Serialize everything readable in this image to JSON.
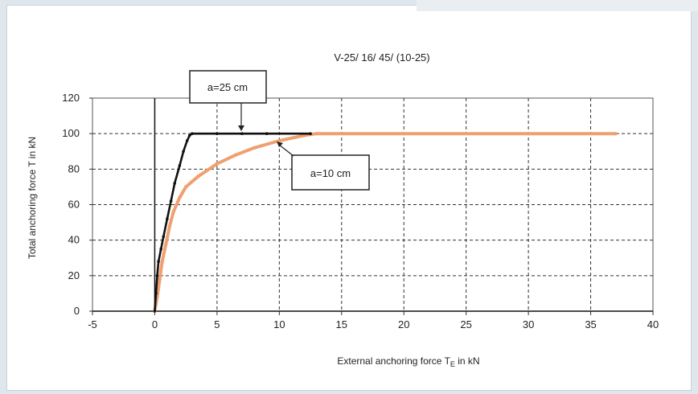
{
  "chart_data": {
    "type": "line",
    "title": "V-25/ 16/ 45/ (10-25)",
    "xlabel": "External anchoring force T",
    "xlabel_sub": "E",
    "xlabel_suffix": " in kN",
    "ylabel": "Total anchoring force T in kN",
    "xlim": [
      -5,
      40
    ],
    "ylim": [
      0,
      120
    ],
    "xticks": [
      -5,
      0,
      5,
      10,
      15,
      20,
      25,
      30,
      35,
      40
    ],
    "yticks": [
      0,
      20,
      40,
      60,
      80,
      100,
      120
    ],
    "grid": true,
    "series": [
      {
        "name": "a=25 cm",
        "color": "#111111",
        "x": [
          0,
          0.1,
          0.2,
          0.3,
          0.5,
          0.7,
          1.0,
          1.3,
          1.6,
          2.0,
          2.3,
          2.6,
          2.8,
          3.0,
          5,
          7,
          9,
          12.5
        ],
        "y": [
          0,
          10,
          20,
          28,
          35,
          42,
          52,
          62,
          72,
          82,
          90,
          96,
          99,
          100,
          100,
          100,
          100,
          100
        ]
      },
      {
        "name": "a=10 cm",
        "color": "#f0a070",
        "x": [
          0,
          0.2,
          0.4,
          0.6,
          0.9,
          1.2,
          1.5,
          2.0,
          2.5,
          3.5,
          5,
          6.5,
          8,
          10,
          12,
          13,
          20,
          30,
          37
        ],
        "y": [
          0,
          8,
          18,
          28,
          38,
          48,
          56,
          64,
          70,
          76,
          83,
          88,
          92,
          96,
          99,
          100,
          100,
          100,
          100
        ]
      }
    ],
    "annotations": [
      {
        "text": "a=25 cm"
      },
      {
        "text": "a=10 cm"
      }
    ]
  }
}
